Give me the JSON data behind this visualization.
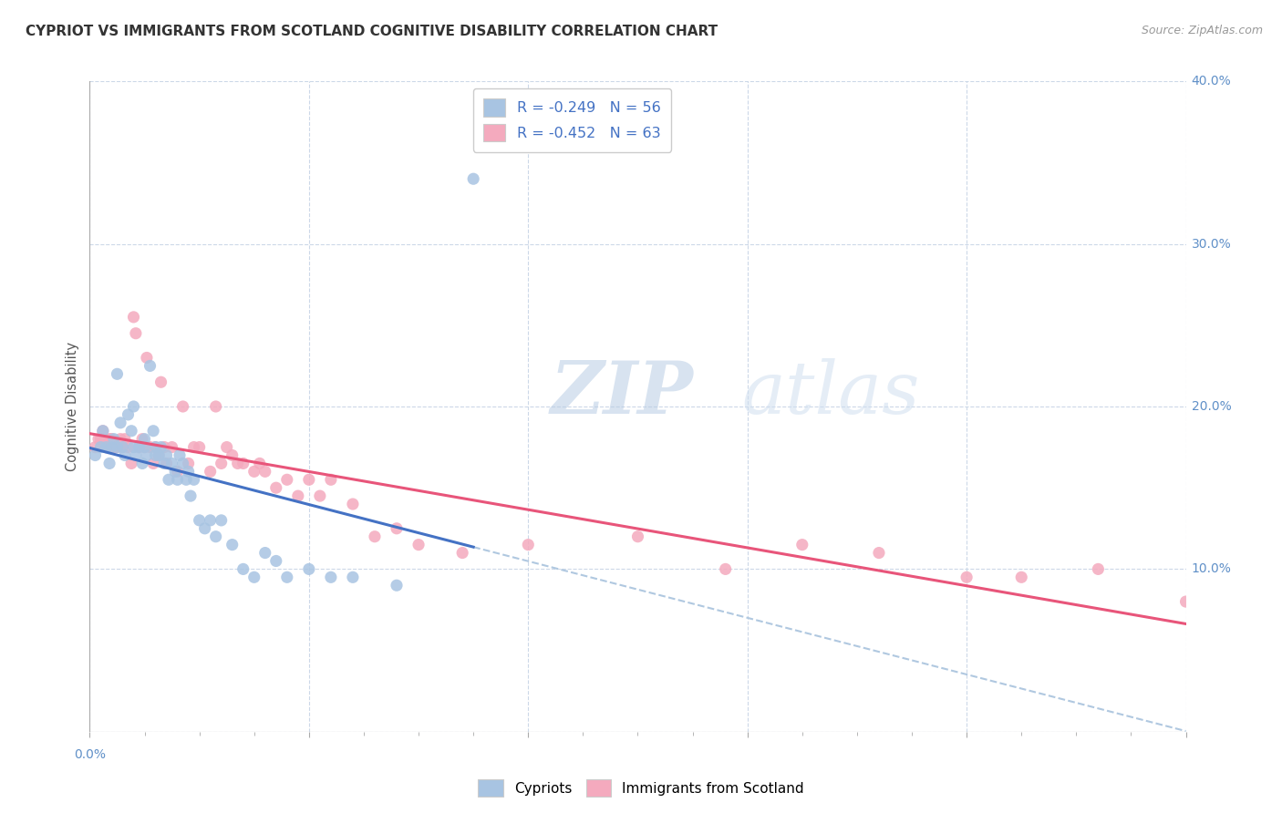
{
  "title": "CYPRIOT VS IMMIGRANTS FROM SCOTLAND COGNITIVE DISABILITY CORRELATION CHART",
  "source": "Source: ZipAtlas.com",
  "ylabel": "Cognitive Disability",
  "watermark": "ZIPatlas",
  "legend_label1": "Cypriots",
  "legend_label2": "Immigrants from Scotland",
  "r1": -0.249,
  "n1": 56,
  "r2": -0.452,
  "n2": 63,
  "color1": "#a8c4e2",
  "color2": "#f4aabe",
  "line_color1": "#4472c4",
  "line_color2": "#e8557a",
  "dashed_color": "#b0c8e0",
  "legend_text_color": "#4472c4",
  "tick_color": "#6090c8",
  "xlim": [
    0.0,
    0.1
  ],
  "ylim": [
    0.0,
    0.4
  ],
  "xticks": [
    0.0,
    0.02,
    0.04,
    0.06,
    0.08,
    0.1
  ],
  "yticks": [
    0.0,
    0.1,
    0.2,
    0.3,
    0.4
  ],
  "xtick_labels": [
    "0.0%",
    "",
    "",
    "",
    "",
    "10.0%"
  ],
  "ytick_labels": [
    "",
    "10.0%",
    "20.0%",
    "30.0%",
    "40.0%"
  ],
  "background_color": "#ffffff",
  "grid_color": "#ccd8e8",
  "cypriots_x": [
    0.0005,
    0.001,
    0.0012,
    0.0015,
    0.0018,
    0.002,
    0.0022,
    0.0025,
    0.0025,
    0.0028,
    0.003,
    0.0032,
    0.0035,
    0.0038,
    0.004,
    0.004,
    0.0042,
    0.0045,
    0.0048,
    0.005,
    0.005,
    0.0052,
    0.0055,
    0.0058,
    0.006,
    0.006,
    0.0063,
    0.0065,
    0.0068,
    0.007,
    0.0072,
    0.0075,
    0.0078,
    0.008,
    0.0082,
    0.0085,
    0.0088,
    0.009,
    0.0092,
    0.0095,
    0.01,
    0.0105,
    0.011,
    0.0115,
    0.012,
    0.013,
    0.014,
    0.015,
    0.016,
    0.017,
    0.018,
    0.02,
    0.022,
    0.024,
    0.028,
    0.035
  ],
  "cypriots_y": [
    0.17,
    0.175,
    0.185,
    0.175,
    0.165,
    0.175,
    0.18,
    0.22,
    0.175,
    0.19,
    0.175,
    0.17,
    0.195,
    0.185,
    0.175,
    0.2,
    0.17,
    0.175,
    0.165,
    0.18,
    0.175,
    0.17,
    0.225,
    0.185,
    0.17,
    0.175,
    0.17,
    0.175,
    0.165,
    0.17,
    0.155,
    0.165,
    0.16,
    0.155,
    0.17,
    0.165,
    0.155,
    0.16,
    0.145,
    0.155,
    0.13,
    0.125,
    0.13,
    0.12,
    0.13,
    0.115,
    0.1,
    0.095,
    0.11,
    0.105,
    0.095,
    0.1,
    0.095,
    0.095,
    0.09,
    0.34
  ],
  "scotland_x": [
    0.0005,
    0.0008,
    0.001,
    0.0012,
    0.0015,
    0.0018,
    0.002,
    0.0022,
    0.0025,
    0.0028,
    0.003,
    0.0032,
    0.0035,
    0.0038,
    0.004,
    0.0042,
    0.0045,
    0.0048,
    0.005,
    0.0052,
    0.0055,
    0.0058,
    0.006,
    0.0063,
    0.0065,
    0.0068,
    0.007,
    0.0075,
    0.008,
    0.0085,
    0.009,
    0.0095,
    0.01,
    0.011,
    0.0115,
    0.012,
    0.0125,
    0.013,
    0.0135,
    0.014,
    0.015,
    0.0155,
    0.016,
    0.017,
    0.018,
    0.019,
    0.02,
    0.021,
    0.022,
    0.024,
    0.026,
    0.028,
    0.03,
    0.034,
    0.04,
    0.05,
    0.058,
    0.065,
    0.072,
    0.08,
    0.085,
    0.092,
    0.1
  ],
  "scotland_y": [
    0.175,
    0.18,
    0.18,
    0.185,
    0.175,
    0.18,
    0.18,
    0.175,
    0.175,
    0.18,
    0.175,
    0.18,
    0.175,
    0.165,
    0.255,
    0.245,
    0.175,
    0.18,
    0.175,
    0.23,
    0.175,
    0.165,
    0.175,
    0.17,
    0.215,
    0.175,
    0.165,
    0.175,
    0.16,
    0.2,
    0.165,
    0.175,
    0.175,
    0.16,
    0.2,
    0.165,
    0.175,
    0.17,
    0.165,
    0.165,
    0.16,
    0.165,
    0.16,
    0.15,
    0.155,
    0.145,
    0.155,
    0.145,
    0.155,
    0.14,
    0.12,
    0.125,
    0.115,
    0.11,
    0.115,
    0.12,
    0.1,
    0.115,
    0.11,
    0.095,
    0.095,
    0.1,
    0.08
  ],
  "cypriot_line_xlim": [
    0.0,
    0.038
  ],
  "cypriot_dashed_xlim": [
    0.038,
    0.1
  ]
}
